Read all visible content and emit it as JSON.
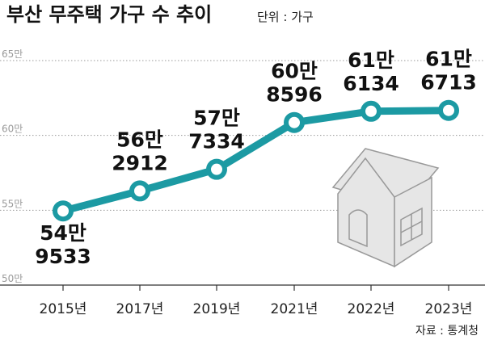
{
  "header": {
    "title": "부산 무주택 가구 수 추이",
    "unit": "단위 : 가구"
  },
  "footer": {
    "source": "자료 : 통계청"
  },
  "colors": {
    "line": "#1c9aa3",
    "marker_fill": "#ffffff",
    "grid": "#9a9a9a",
    "house_fill": "#e6e6e6",
    "house_stroke": "#999999"
  },
  "icons": [
    "house-icon"
  ],
  "chart_data": {
    "type": "line",
    "categories": [
      "2015년",
      "2017년",
      "2019년",
      "2021년",
      "2022년",
      "2023년"
    ],
    "values": [
      549533,
      562912,
      577334,
      608596,
      616134,
      616713
    ],
    "data_labels": [
      [
        "54만",
        "9533"
      ],
      [
        "56만",
        "2912"
      ],
      [
        "57만",
        "7334"
      ],
      [
        "60만",
        "8596"
      ],
      [
        "61만",
        "6134"
      ],
      [
        "61만",
        "6713"
      ]
    ],
    "yticks": [
      500000,
      550000,
      600000,
      650000
    ],
    "ytick_labels": [
      "50만",
      "55만",
      "60만",
      "65만"
    ],
    "ylim": [
      500000,
      650000
    ],
    "xlabel": "",
    "ylabel": "",
    "grid": "horizontal dotted",
    "legend": "none"
  }
}
